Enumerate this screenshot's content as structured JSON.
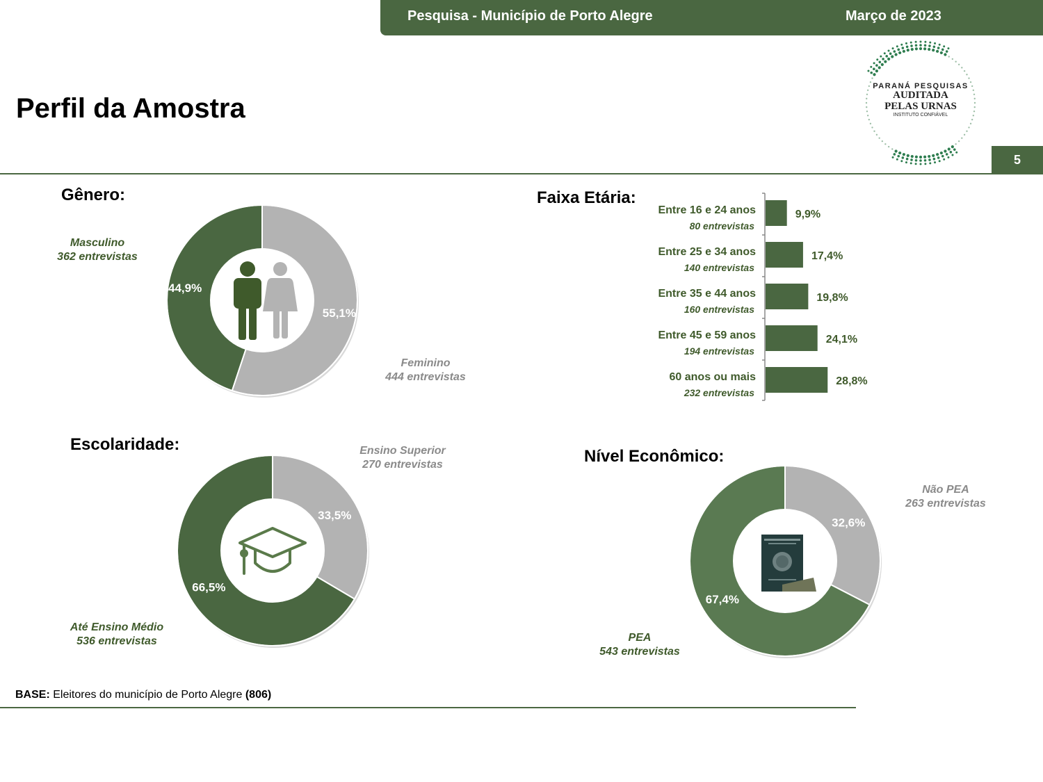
{
  "header": {
    "left_text": "Pesquisa - Município de Porto Alegre",
    "right_text": "Março de 2023",
    "page_number": "5"
  },
  "title": "Perfil da Amostra",
  "logo": {
    "line1": "PARANÁ PESQUISAS",
    "line2": "AUDITADA",
    "line3": "PELAS URNAS",
    "line4": "INSTITUTO CONFIÁVEL"
  },
  "colors": {
    "green": "#4a6741",
    "green_dark": "#3f5a2b",
    "gray": "#b3b3b3",
    "gray_text": "#8a8a8a"
  },
  "sections": {
    "genero": {
      "title": "Gênero:",
      "icon": "man-woman-icon",
      "masc_label": "Masculino",
      "masc_count": "362 entrevistas",
      "fem_label": "Feminino",
      "fem_count": "444 entrevistas"
    },
    "faixa": {
      "title": "Faixa Etária:"
    },
    "escolaridade": {
      "title": "Escolaridade:",
      "icon": "graduation-cap-icon",
      "sup_label": "Ensino Superior",
      "sup_count": "270 entrevistas",
      "med_label": "Até Ensino Médio",
      "med_count": "536 entrevistas"
    },
    "nivel": {
      "title": "Nível Econômico:",
      "icon": "work-card-icon",
      "npea_label": "Não PEA",
      "npea_count": "263 entrevistas",
      "pea_label": "PEA",
      "pea_count": "543 entrevistas"
    }
  },
  "footer": {
    "base_label": "BASE:",
    "base_text": "Eleitores do município de Porto Alegre",
    "base_n": "(806)"
  },
  "chart_data": [
    {
      "type": "pie",
      "name_key": "genero",
      "categories": [
        "Masculino",
        "Feminino"
      ],
      "values": [
        44.9,
        55.1
      ],
      "labels": [
        "44,9%",
        "55,1%"
      ],
      "colors": [
        "#4a6741",
        "#b3b3b3"
      ]
    },
    {
      "type": "bar",
      "orientation": "horizontal",
      "categories": [
        "Entre 16 e 24 anos",
        "Entre 25 e 34 anos",
        "Entre 35 e 44 anos",
        "Entre 45 e 59 anos",
        "60 anos ou mais"
      ],
      "counts": [
        "80 entrevistas",
        "140 entrevistas",
        "160 entrevistas",
        "194 entrevistas",
        "232 entrevistas"
      ],
      "values": [
        9.9,
        17.4,
        19.8,
        24.1,
        28.8
      ],
      "labels": [
        "9,9%",
        "17,4%",
        "19,8%",
        "24,1%",
        "28,8%"
      ],
      "color": "#4a6741"
    },
    {
      "type": "pie",
      "name_key": "escolaridade",
      "categories": [
        "Ensino Superior",
        "Até Ensino Médio"
      ],
      "values": [
        33.5,
        66.5
      ],
      "labels": [
        "33,5%",
        "66,5%"
      ],
      "colors": [
        "#b3b3b3",
        "#4a6741"
      ]
    },
    {
      "type": "pie",
      "name_key": "nivel",
      "categories": [
        "Não PEA",
        "PEA"
      ],
      "values": [
        32.6,
        67.4
      ],
      "labels": [
        "32,6%",
        "67,4%"
      ],
      "colors": [
        "#b3b3b3",
        "#5a7a52"
      ]
    }
  ]
}
